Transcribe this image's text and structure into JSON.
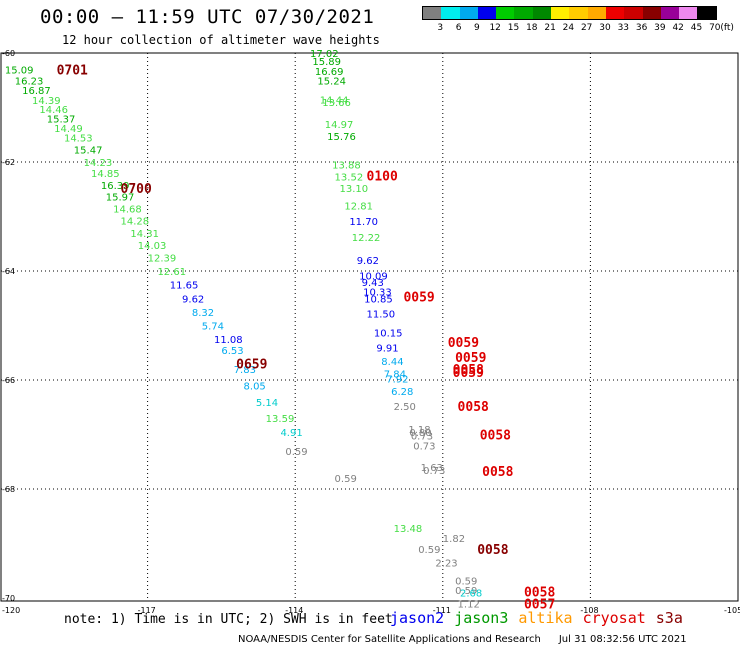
{
  "header": {
    "title": "00:00 – 11:59 UTC 07/30/2021",
    "subtitle": "12 hour collection of altimeter wave heights"
  },
  "legend": {
    "colors": [
      "#808080",
      "#00eeee",
      "#00aaee",
      "#0000ee",
      "#00cc00",
      "#00aa00",
      "#008800",
      "#ffee00",
      "#ffcc00",
      "#ffaa00",
      "#ee0000",
      "#cc0000",
      "#880000",
      "#990099",
      "#ee88ee",
      "#000000"
    ],
    "ticks": [
      "3",
      "6",
      "9",
      "12",
      "15",
      "18",
      "21",
      "24",
      "27",
      "30",
      "33",
      "36",
      "39",
      "42",
      "45",
      "70",
      "(ft)"
    ]
  },
  "axes": {
    "lat_labels": [
      "-60",
      "-62",
      "-64",
      "-66",
      "-68",
      "-70"
    ],
    "lon_labels": [
      "-120",
      "-117",
      "-114",
      "-111",
      "-108",
      "-105"
    ]
  },
  "note": "note: 1) Time is in UTC; 2) SWH is in feet",
  "satellites": [
    {
      "name": "jason2",
      "color": "#0000ee"
    },
    {
      "name": "jason3",
      "color": "#009900"
    },
    {
      "name": "altika",
      "color": "#ff9900"
    },
    {
      "name": "cryosat",
      "color": "#dd0000"
    },
    {
      "name": "s3a",
      "color": "#880000"
    }
  ],
  "footer": {
    "credit": "NOAA/NESDIS Center for Satellite Applications and Research",
    "timestamp": "Jul 31 08:32:56 UTC 2021"
  },
  "pass_labels": [
    {
      "text": "0701",
      "lon": -118.85,
      "lat": -60.3,
      "color": "#880000"
    },
    {
      "text": "0700",
      "lon": -117.55,
      "lat": -62.48,
      "color": "#880000"
    },
    {
      "text": "0659",
      "lon": -115.2,
      "lat": -65.7,
      "color": "#880000"
    },
    {
      "text": "0100",
      "lon": -112.55,
      "lat": -62.25,
      "color": "#dd0000"
    },
    {
      "text": "0059",
      "lon": -111.8,
      "lat": -64.47,
      "color": "#dd0000"
    },
    {
      "text": "0059",
      "lon": -110.9,
      "lat": -65.3,
      "color": "#dd0000"
    },
    {
      "text": "0059",
      "lon": -110.75,
      "lat": -65.58,
      "color": "#dd0000"
    },
    {
      "text": "0058",
      "lon": -110.8,
      "lat": -65.8,
      "color": "#dd0000"
    },
    {
      "text": "0059",
      "lon": -110.8,
      "lat": -65.85,
      "color": "#dd0000"
    },
    {
      "text": "0058",
      "lon": -110.7,
      "lat": -66.48,
      "color": "#dd0000"
    },
    {
      "text": "0058",
      "lon": -110.25,
      "lat": -67.0,
      "color": "#dd0000"
    },
    {
      "text": "0058",
      "lon": -110.2,
      "lat": -67.67,
      "color": "#dd0000"
    },
    {
      "text": "0058",
      "lon": -110.3,
      "lat": -69.1,
      "color": "#880000"
    },
    {
      "text": "0058",
      "lon": -109.35,
      "lat": -69.88,
      "color": "#dd0000"
    },
    {
      "text": "0057",
      "lon": -109.35,
      "lat": -70.1,
      "color": "#dd0000"
    }
  ],
  "measurements": [
    {
      "t": "15.09",
      "lon": -119.9,
      "lat": -60.3,
      "color": "#00aa00"
    },
    {
      "t": "16.23",
      "lon": -119.7,
      "lat": -60.5,
      "color": "#00aa00"
    },
    {
      "t": "16.87",
      "lon": -119.55,
      "lat": -60.68,
      "color": "#00aa00"
    },
    {
      "t": "14.39",
      "lon": -119.35,
      "lat": -60.86,
      "color": "#44dd44"
    },
    {
      "t": "14.46",
      "lon": -119.2,
      "lat": -61.03,
      "color": "#44dd44"
    },
    {
      "t": "15.37",
      "lon": -119.05,
      "lat": -61.2,
      "color": "#00aa00"
    },
    {
      "t": "14.49",
      "lon": -118.9,
      "lat": -61.38,
      "color": "#44dd44"
    },
    {
      "t": "14.53",
      "lon": -118.7,
      "lat": -61.55,
      "color": "#44dd44"
    },
    {
      "t": "15.47",
      "lon": -118.5,
      "lat": -61.77,
      "color": "#00aa00"
    },
    {
      "t": "14.23",
      "lon": -118.3,
      "lat": -62.0,
      "color": "#44dd44"
    },
    {
      "t": "14.85",
      "lon": -118.15,
      "lat": -62.2,
      "color": "#44dd44"
    },
    {
      "t": "16.39",
      "lon": -117.95,
      "lat": -62.42,
      "color": "#00aa00"
    },
    {
      "t": "15.97",
      "lon": -117.85,
      "lat": -62.63,
      "color": "#00aa00"
    },
    {
      "t": "14.68",
      "lon": -117.7,
      "lat": -62.85,
      "color": "#44dd44"
    },
    {
      "t": "14.28",
      "lon": -117.55,
      "lat": -63.07,
      "color": "#44dd44"
    },
    {
      "t": "14.31",
      "lon": -117.35,
      "lat": -63.3,
      "color": "#44dd44"
    },
    {
      "t": "14.03",
      "lon": -117.2,
      "lat": -63.52,
      "color": "#44dd44"
    },
    {
      "t": "12.39",
      "lon": -117.0,
      "lat": -63.75,
      "color": "#44dd44"
    },
    {
      "t": "12.61",
      "lon": -116.8,
      "lat": -64.0,
      "color": "#44dd44"
    },
    {
      "t": "11.65",
      "lon": -116.55,
      "lat": -64.25,
      "color": "#0000ee"
    },
    {
      "t": "9.62",
      "lon": -116.3,
      "lat": -64.5,
      "color": "#0000ee"
    },
    {
      "t": "8.32",
      "lon": -116.1,
      "lat": -64.75,
      "color": "#00aaee"
    },
    {
      "t": "5.74",
      "lon": -115.9,
      "lat": -65.0,
      "color": "#00aaee"
    },
    {
      "t": "11.08",
      "lon": -115.65,
      "lat": -65.25,
      "color": "#0000ee"
    },
    {
      "t": "6.53",
      "lon": -115.5,
      "lat": -65.45,
      "color": "#00aaee"
    },
    {
      "t": "7.83",
      "lon": -115.25,
      "lat": -65.8,
      "color": "#00aaee"
    },
    {
      "t": "8.05",
      "lon": -115.05,
      "lat": -66.1,
      "color": "#00aaee"
    },
    {
      "t": "5.14",
      "lon": -114.8,
      "lat": -66.4,
      "color": "#00cccc"
    },
    {
      "t": "13.59",
      "lon": -114.6,
      "lat": -66.7,
      "color": "#44dd44"
    },
    {
      "t": "4.91",
      "lon": -114.3,
      "lat": -66.95,
      "color": "#00cccc"
    },
    {
      "t": "17.02",
      "lon": -113.7,
      "lat": -60.0,
      "color": "#00aa00"
    },
    {
      "t": "15.89",
      "lon": -113.65,
      "lat": -60.15,
      "color": "#00aa00"
    },
    {
      "t": "16.69",
      "lon": -113.6,
      "lat": -60.33,
      "color": "#00aa00"
    },
    {
      "t": "15.24",
      "lon": -113.55,
      "lat": -60.5,
      "color": "#00aa00"
    },
    {
      "t": "14.44",
      "lon": -113.5,
      "lat": -60.85,
      "color": "#44dd44"
    },
    {
      "t": "13.66",
      "lon": -113.45,
      "lat": -60.9,
      "color": "#44dd44"
    },
    {
      "t": "14.97",
      "lon": -113.4,
      "lat": -61.3,
      "color": "#44dd44"
    },
    {
      "t": "15.76",
      "lon": -113.35,
      "lat": -61.52,
      "color": "#00aa00"
    },
    {
      "t": "13.88",
      "lon": -113.25,
      "lat": -62.05,
      "color": "#44dd44"
    },
    {
      "t": "13.52",
      "lon": -113.2,
      "lat": -62.27,
      "color": "#44dd44"
    },
    {
      "t": "13.10",
      "lon": -113.1,
      "lat": -62.48,
      "color": "#44dd44"
    },
    {
      "t": "12.81",
      "lon": -113.0,
      "lat": -62.8,
      "color": "#44dd44"
    },
    {
      "t": "11.70",
      "lon": -112.9,
      "lat": -63.08,
      "color": "#0000ee"
    },
    {
      "t": "12.22",
      "lon": -112.85,
      "lat": -63.38,
      "color": "#44dd44"
    },
    {
      "t": "9.62",
      "lon": -112.75,
      "lat": -63.8,
      "color": "#0000ee"
    },
    {
      "t": "10.09",
      "lon": -112.7,
      "lat": -64.08,
      "color": "#0000ee"
    },
    {
      "t": "9.43",
      "lon": -112.65,
      "lat": -64.2,
      "color": "#0000ee"
    },
    {
      "t": "10.33",
      "lon": -112.62,
      "lat": -64.38,
      "color": "#0000ee"
    },
    {
      "t": "10.85",
      "lon": -112.6,
      "lat": -64.5,
      "color": "#0000ee"
    },
    {
      "t": "11.50",
      "lon": -112.55,
      "lat": -64.78,
      "color": "#0000ee"
    },
    {
      "t": "10.15",
      "lon": -112.4,
      "lat": -65.13,
      "color": "#0000ee"
    },
    {
      "t": "9.91",
      "lon": -112.35,
      "lat": -65.4,
      "color": "#0000ee"
    },
    {
      "t": "8.44",
      "lon": -112.25,
      "lat": -65.65,
      "color": "#00aaee"
    },
    {
      "t": "7.84",
      "lon": -112.2,
      "lat": -65.88,
      "color": "#00aaee"
    },
    {
      "t": "7.92",
      "lon": -112.15,
      "lat": -65.97,
      "color": "#00aaee"
    },
    {
      "t": "6.28",
      "lon": -112.05,
      "lat": -66.2,
      "color": "#00aaee"
    },
    {
      "t": "2.50",
      "lon": -112.0,
      "lat": -66.48,
      "color": "#808080"
    },
    {
      "t": "0.59",
      "lon": -114.2,
      "lat": -67.3,
      "color": "#808080"
    },
    {
      "t": "0.59",
      "lon": -113.2,
      "lat": -67.8,
      "color": "#808080"
    },
    {
      "t": "1.18",
      "lon": -111.7,
      "lat": -66.9,
      "color": "#808080"
    },
    {
      "t": "0.80",
      "lon": -111.68,
      "lat": -66.95,
      "color": "#808080"
    },
    {
      "t": "0.73",
      "lon": -111.65,
      "lat": -67.02,
      "color": "#808080"
    },
    {
      "t": "0.73",
      "lon": -111.6,
      "lat": -67.2,
      "color": "#808080"
    },
    {
      "t": "1.63",
      "lon": -111.45,
      "lat": -67.6,
      "color": "#808080"
    },
    {
      "t": "0.73",
      "lon": -111.4,
      "lat": -67.65,
      "color": "#808080"
    },
    {
      "t": "13.48",
      "lon": -112.0,
      "lat": -68.72,
      "color": "#44dd44"
    },
    {
      "t": "1.82",
      "lon": -111.0,
      "lat": -68.9,
      "color": "#808080"
    },
    {
      "t": "0.59",
      "lon": -111.5,
      "lat": -69.1,
      "color": "#808080"
    },
    {
      "t": "2.23",
      "lon": -111.15,
      "lat": -69.35,
      "color": "#808080"
    },
    {
      "t": "0.59",
      "lon": -110.75,
      "lat": -69.68,
      "color": "#808080"
    },
    {
      "t": "0.59",
      "lon": -110.75,
      "lat": -69.85,
      "color": "#808080"
    },
    {
      "t": "2.68",
      "lon": -110.65,
      "lat": -69.9,
      "color": "#00cccc"
    },
    {
      "t": "1.12",
      "lon": -110.7,
      "lat": -70.1,
      "color": "#808080"
    }
  ]
}
